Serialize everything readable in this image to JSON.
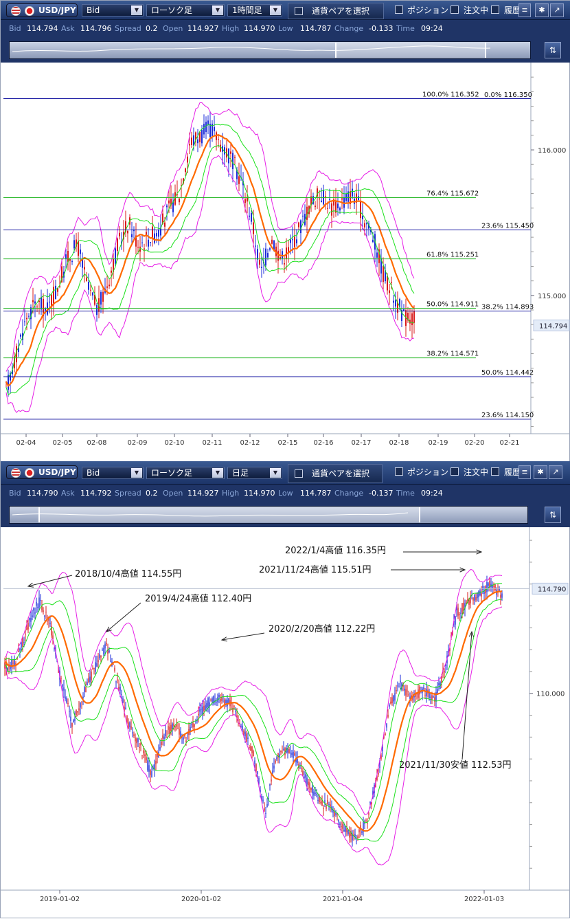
{
  "panels": [
    {
      "toolbar": {
        "pair": "USD/JPY",
        "price_type": "Bid",
        "chart_type": "ローソク足",
        "timeframe": "1時間足",
        "pair_select": "通貨ペアを選択",
        "position": "ポジション",
        "orders": "注文中",
        "history": "履歴"
      },
      "quote": {
        "bid_label": "Bid",
        "bid": "114.794",
        "ask_label": "Ask",
        "ask": "114.796",
        "spread_label": "Spread",
        "spread": "0.2",
        "open_label": "Open",
        "open": "114.927",
        "high_label": "High",
        "high": "114.970",
        "low_label": "Low",
        "low": "114.787",
        "change_label": "Change",
        "change": "-0.133",
        "time_label": "Time",
        "time": "09:24"
      },
      "price_tag": "114.794"
    },
    {
      "toolbar": {
        "pair": "USD/JPY",
        "price_type": "Bid",
        "chart_type": "ローソク足",
        "timeframe": "日足",
        "pair_select": "通貨ペアを選択",
        "position": "ポジション",
        "orders": "注文中",
        "history": "履歴"
      },
      "quote": {
        "bid_label": "Bid",
        "bid": "114.790",
        "ask_label": "Ask",
        "ask": "114.792",
        "spread_label": "Spread",
        "spread": "0.2",
        "open_label": "Open",
        "open": "114.927",
        "high_label": "High",
        "high": "114.970",
        "low_label": "Low",
        "low": "114.787",
        "change_label": "Change",
        "change": "-0.137",
        "time_label": "Time",
        "time": "09:24"
      },
      "price_tag": "114.790"
    }
  ],
  "colors": {
    "candle_up": "#d81a1a",
    "candle_down": "#1a2ad8",
    "ma": "#ff6a00",
    "bb_inner": "#19e019",
    "bb_outer": "#e61ee6",
    "fib_blue": "#1414a0",
    "fib_green": "#2ab82a"
  },
  "chart_data": [
    {
      "type": "candlestick",
      "timeframe": "1時間足",
      "x_tick_labels": [
        "02-04",
        "02-05",
        "02-08",
        "02-09",
        "02-10",
        "02-11",
        "02-12",
        "02-15",
        "02-16",
        "02-17",
        "02-18",
        "02-19",
        "02-20",
        "02-21"
      ],
      "y_tick_labels": [
        "116.000",
        "115.000"
      ],
      "ylim": [
        114.05,
        116.6
      ],
      "overlays": [
        "moving average",
        "bollinger bands ±1σ",
        "bollinger bands ±2σ"
      ],
      "fib_lines_blue": [
        {
          "label": "100.0%  116.352",
          "value": 116.352
        },
        {
          "label": "0.0%  116.350",
          "value": 116.35
        },
        {
          "label": "23.6%  115.450",
          "value": 115.45
        },
        {
          "label": "38.2%  114.893",
          "value": 114.893
        },
        {
          "label": "50.0%  114.442",
          "value": 114.442
        },
        {
          "label": "23.6%  114.150",
          "value": 114.15
        }
      ],
      "fib_lines_green": [
        {
          "label": "76.4%  115.672",
          "value": 115.672
        },
        {
          "label": "61.8%  115.251",
          "value": 115.251
        },
        {
          "label": "50.0%  114.911",
          "value": 114.911
        },
        {
          "label": "38.2%  114.571",
          "value": 114.571
        }
      ],
      "close_path": [
        114.35,
        114.6,
        114.85,
        114.95,
        114.9,
        115.05,
        115.25,
        115.35,
        115.05,
        114.9,
        115.1,
        115.35,
        115.5,
        115.35,
        115.4,
        115.45,
        115.6,
        115.7,
        116.05,
        116.1,
        116.15,
        116.05,
        115.95,
        115.8,
        115.55,
        115.15,
        115.4,
        115.25,
        115.35,
        115.5,
        115.65,
        115.7,
        115.6,
        115.65,
        115.7,
        115.55,
        115.4,
        115.15,
        115.0,
        114.85,
        114.85
      ]
    },
    {
      "type": "candlestick",
      "timeframe": "日足",
      "x_tick_labels": [
        "2019-01-02",
        "2020-01-02",
        "2021-01-04",
        "2022-01-03"
      ],
      "y_tick_labels": [
        "110.000"
      ],
      "ylim": [
        101.0,
        117.6
      ],
      "overlays": [
        "moving average",
        "bollinger bands ±1σ",
        "bollinger bands ±2σ"
      ],
      "annotations": [
        {
          "text": "2018/10/4高値 114.55円",
          "value": 114.55
        },
        {
          "text": "2019/4/24高値 112.40円",
          "value": 112.4
        },
        {
          "text": "2020/2/20高値 112.22円",
          "value": 112.22
        },
        {
          "text": "2021/11/24高値 115.51円",
          "value": 115.51
        },
        {
          "text": "2022/1/4高値 116.35円",
          "value": 116.35
        },
        {
          "text": "2021/11/30安値 112.53円",
          "value": 112.53
        }
      ],
      "close_path": [
        111.2,
        111.5,
        113.0,
        114.2,
        113.2,
        110.5,
        108.6,
        110.0,
        111.2,
        112.2,
        110.5,
        108.5,
        107.6,
        106.2,
        108.0,
        108.6,
        107.9,
        108.9,
        109.6,
        109.8,
        109.5,
        108.5,
        107.2,
        104.5,
        107.0,
        107.5,
        106.8,
        105.8,
        105.0,
        104.8,
        103.8,
        103.4,
        104.1,
        106.2,
        109.3,
        110.4,
        109.8,
        110.2,
        109.6,
        111.2,
        113.7,
        114.2,
        114.6,
        115.0,
        114.5
      ]
    }
  ]
}
